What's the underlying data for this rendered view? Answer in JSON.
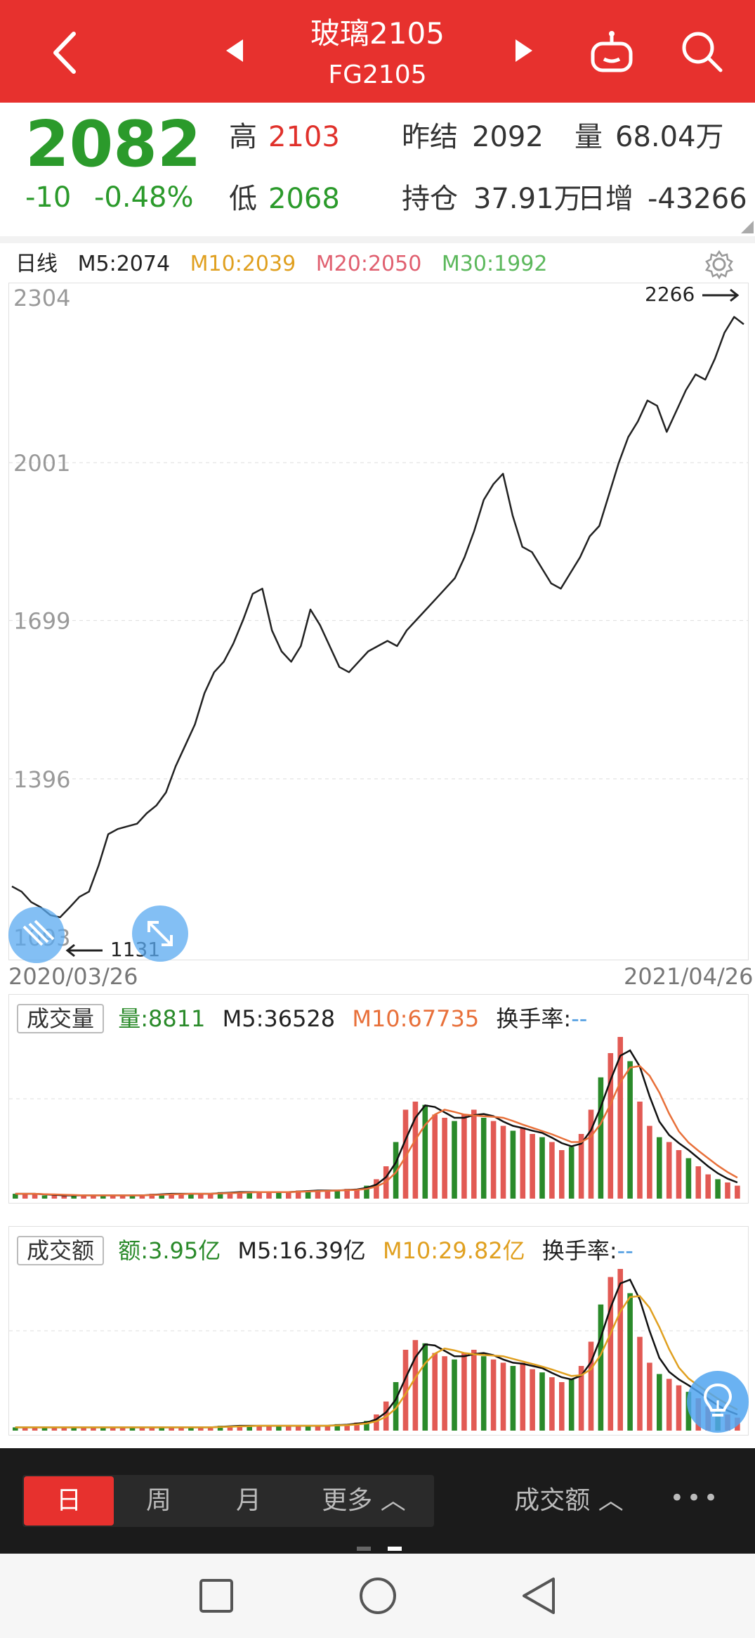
{
  "header": {
    "title": "玻璃2105",
    "code": "FG2105"
  },
  "quote": {
    "price": "2082",
    "change": "-10",
    "change_pct": "-0.48%",
    "high_label": "高",
    "high": "2103",
    "low_label": "低",
    "low": "2068",
    "prev_settle_label": "昨结",
    "prev_settle": "2092",
    "volume_label": "量",
    "volume": "68.04万",
    "open_interest_label": "持仓",
    "open_interest": "37.91万",
    "daily_inc_label": "日增",
    "daily_inc": "-43266"
  },
  "kline": {
    "period_label": "日线",
    "ma5": "M5:2074",
    "ma10": "M10:2039",
    "ma20": "M20:2050",
    "ma30": "M30:1992",
    "max_label": "2266",
    "min_label": "1131",
    "start_date": "2020/03/26",
    "end_date": "2021/04/26",
    "colors": {
      "ma10": "#e0a020",
      "ma20": "#e06070",
      "ma30": "#5cb85c"
    }
  },
  "volume_panel": {
    "tag": "成交量",
    "value": "量:8811",
    "ma5": "M5:36528",
    "ma10": "M10:67735",
    "turnover_label": "换手率:",
    "turnover": "--"
  },
  "amount_panel": {
    "tag": "成交额",
    "value": "额:3.95亿",
    "ma5": "M5:16.39亿",
    "ma10": "M10:29.82亿",
    "turnover_label": "换手率:",
    "turnover": "--"
  },
  "bottom_bar": {
    "tabs": [
      "日",
      "周",
      "月",
      "更多 ︿"
    ],
    "selected": "日",
    "indicator_label": "成交额 ︿",
    "more_icon": "•••"
  },
  "chart_data": [
    {
      "type": "line",
      "title": "",
      "y_ticks": [
        "2304",
        "2001",
        "1699",
        "1396",
        "1093"
      ],
      "ylim": [
        1093,
        2304
      ],
      "x_range": [
        "2020/03/26",
        "2021/04/26"
      ],
      "series": [
        {
          "values": [
            1190,
            1180,
            1160,
            1150,
            1135,
            1131,
            1150,
            1170,
            1180,
            1230,
            1290,
            1300,
            1305,
            1310,
            1330,
            1345,
            1370,
            1420,
            1460,
            1500,
            1560,
            1600,
            1620,
            1655,
            1700,
            1750,
            1760,
            1680,
            1640,
            1620,
            1650,
            1720,
            1690,
            1650,
            1610,
            1600,
            1620,
            1640,
            1650,
            1660,
            1650,
            1680,
            1700,
            1720,
            1740,
            1760,
            1780,
            1820,
            1870,
            1930,
            1960,
            1980,
            1900,
            1840,
            1830,
            1800,
            1770,
            1760,
            1790,
            1820,
            1860,
            1880,
            1940,
            2000,
            2050,
            2080,
            2120,
            2110,
            2060,
            2100,
            2140,
            2170,
            2160,
            2200,
            2250,
            2280,
            2266
          ]
        }
      ]
    },
    {
      "type": "bar",
      "title": "",
      "series": [
        {
          "name": "量",
          "values": [
            3,
            3,
            3,
            2,
            2,
            2,
            2,
            2,
            2,
            2,
            2,
            2,
            2,
            2,
            3,
            3,
            3,
            3,
            3,
            3,
            3,
            4,
            4,
            4,
            4,
            4,
            4,
            4,
            4,
            5,
            5,
            5,
            5,
            5,
            6,
            6,
            8,
            12,
            20,
            35,
            55,
            60,
            58,
            52,
            50,
            48,
            52,
            55,
            50,
            48,
            45,
            42,
            44,
            40,
            38,
            35,
            30,
            32,
            40,
            55,
            75,
            90,
            100,
            85,
            60,
            45,
            38,
            35,
            30,
            25,
            20,
            15,
            12,
            10,
            8
          ]
        }
      ]
    },
    {
      "type": "bar",
      "title": "",
      "series": [
        {
          "name": "额",
          "values": [
            2,
            2,
            2,
            2,
            2,
            2,
            2,
            2,
            2,
            2,
            2,
            2,
            2,
            2,
            2,
            2,
            2,
            2,
            2,
            2,
            2,
            3,
            3,
            3,
            3,
            3,
            3,
            3,
            3,
            3,
            3,
            3,
            3,
            4,
            4,
            5,
            6,
            10,
            18,
            30,
            50,
            56,
            54,
            48,
            46,
            44,
            48,
            50,
            46,
            44,
            42,
            40,
            42,
            38,
            36,
            33,
            30,
            32,
            40,
            55,
            78,
            95,
            100,
            85,
            58,
            42,
            35,
            32,
            28,
            24,
            20,
            15,
            12,
            10,
            8
          ]
        }
      ]
    }
  ]
}
